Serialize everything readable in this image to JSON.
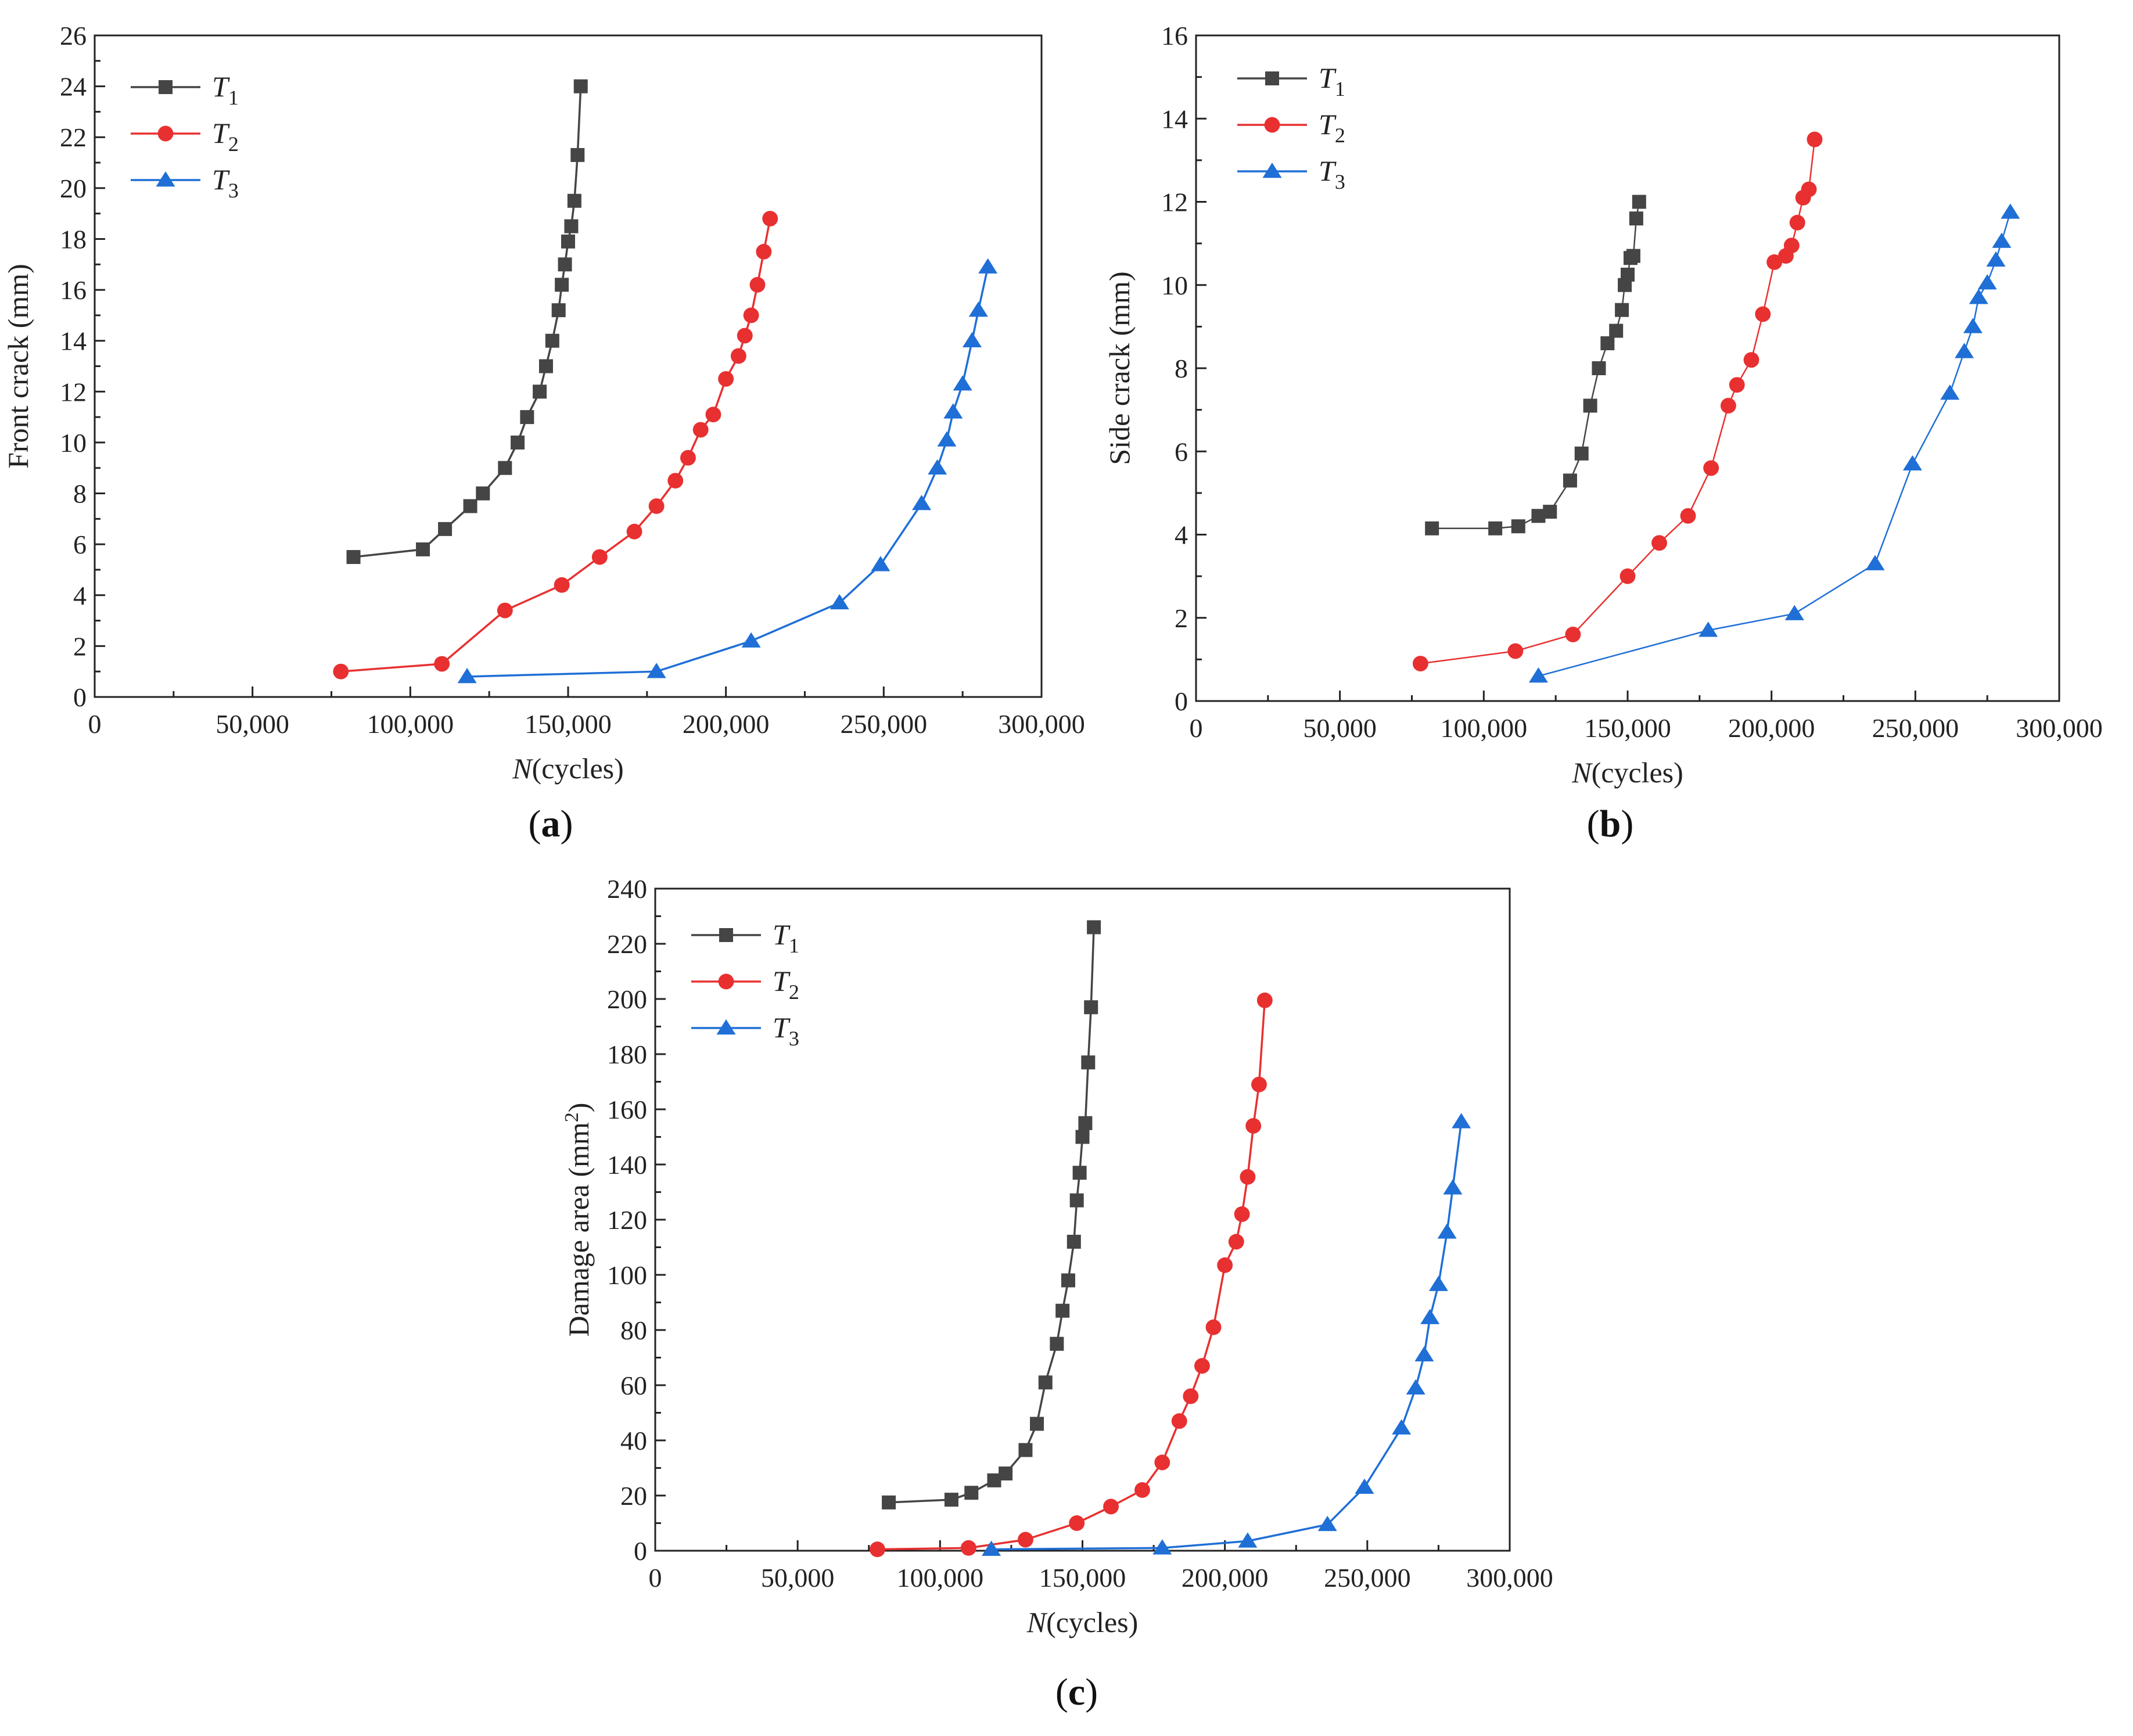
{
  "chart_data": [
    {
      "type": "line",
      "panel_label": "(a)",
      "xlabel_italic": "N",
      "xlabel_rest": "(cycles)",
      "ylabel": "Front crack (mm)",
      "xlim": [
        0,
        300000
      ],
      "ylim": [
        0,
        26
      ],
      "xticks": [
        0,
        50000,
        100000,
        150000,
        200000,
        250000,
        300000
      ],
      "xtick_labels": [
        "0",
        "50,000",
        "100,000",
        "150,000",
        "200,000",
        "250,000",
        "300,000"
      ],
      "yticks": [
        0,
        2,
        4,
        6,
        8,
        10,
        12,
        14,
        16,
        18,
        20,
        22,
        24,
        26
      ],
      "ytick_labels": [
        "0",
        "2",
        "4",
        "6",
        "8",
        "10",
        "12",
        "14",
        "16",
        "18",
        "20",
        "22",
        "24",
        "26"
      ],
      "legend_position": "top-left",
      "series": [
        {
          "name": "T",
          "sub": "1",
          "color": "#454545",
          "marker": "square",
          "x": [
            82000,
            104000,
            111000,
            119000,
            123000,
            130000,
            134000,
            137000,
            141000,
            143000,
            145000,
            147000,
            148000,
            149000,
            150000,
            151000,
            152000,
            153000,
            154000
          ],
          "y": [
            5.5,
            5.8,
            6.6,
            7.5,
            8.0,
            9.0,
            10.0,
            11.0,
            12.0,
            13.0,
            14.0,
            15.2,
            16.2,
            17.0,
            17.9,
            18.5,
            19.5,
            21.3,
            24.0
          ]
        },
        {
          "name": "T",
          "sub": "2",
          "color": "#e83030",
          "marker": "circle",
          "x": [
            78000,
            110000,
            130000,
            148000,
            160000,
            171000,
            178000,
            184000,
            188000,
            192000,
            196000,
            200000,
            204000,
            206000,
            208000,
            210000,
            212000,
            214000
          ],
          "y": [
            1.0,
            1.3,
            3.4,
            4.4,
            5.5,
            6.5,
            7.5,
            8.5,
            9.4,
            10.5,
            11.1,
            12.5,
            13.4,
            14.2,
            15.0,
            16.2,
            17.5,
            18.8
          ]
        },
        {
          "name": "T",
          "sub": "3",
          "color": "#1f6fd6",
          "marker": "triangle",
          "x": [
            118000,
            178000,
            208000,
            236000,
            249000,
            262000,
            267000,
            270000,
            272000,
            275000,
            278000,
            280000,
            283000
          ],
          "y": [
            0.8,
            1.0,
            2.2,
            3.7,
            5.2,
            7.6,
            9.0,
            10.1,
            11.2,
            12.3,
            14.0,
            15.2,
            16.9
          ]
        }
      ]
    },
    {
      "type": "line",
      "panel_label": "(b)",
      "xlabel_italic": "N",
      "xlabel_rest": "(cycles)",
      "ylabel": "Side crack (mm)",
      "xlim": [
        0,
        300000
      ],
      "ylim": [
        0,
        16
      ],
      "xticks": [
        0,
        50000,
        100000,
        150000,
        200000,
        250000,
        300000
      ],
      "xtick_labels": [
        "0",
        "50,000",
        "100,000",
        "150,000",
        "200,000",
        "250,000",
        "300,000"
      ],
      "yticks": [
        0,
        2,
        4,
        6,
        8,
        10,
        12,
        14,
        16
      ],
      "ytick_labels": [
        "0",
        "2",
        "4",
        "6",
        "8",
        "10",
        "12",
        "14",
        "16"
      ],
      "legend_position": "top-left",
      "series": [
        {
          "name": "T",
          "sub": "1",
          "color": "#454545",
          "marker": "square",
          "x": [
            82000,
            104000,
            112000,
            119000,
            123000,
            130000,
            134000,
            137000,
            140000,
            143000,
            146000,
            148000,
            149000,
            150000,
            151000,
            152000,
            153000,
            154000
          ],
          "y": [
            4.15,
            4.15,
            4.2,
            4.45,
            4.55,
            5.3,
            5.95,
            7.1,
            8.0,
            8.6,
            8.9,
            9.4,
            10.0,
            10.25,
            10.65,
            10.7,
            11.6,
            12.0
          ]
        },
        {
          "name": "T",
          "sub": "2",
          "color": "#e83030",
          "marker": "circle",
          "x": [
            78000,
            111000,
            131000,
            150000,
            161000,
            171000,
            179000,
            185000,
            188000,
            193000,
            197000,
            201000,
            205000,
            207000,
            209000,
            211000,
            213000,
            215000
          ],
          "y": [
            0.9,
            1.2,
            1.6,
            3.0,
            3.8,
            4.45,
            5.6,
            7.1,
            7.6,
            8.2,
            9.3,
            10.55,
            10.7,
            10.95,
            11.5,
            12.1,
            12.3,
            13.5
          ]
        },
        {
          "name": "T",
          "sub": "3",
          "color": "#1f6fd6",
          "marker": "triangle",
          "x": [
            119000,
            178000,
            208000,
            236000,
            249000,
            262000,
            267000,
            270000,
            272000,
            275000,
            278000,
            280000,
            283000
          ],
          "y": [
            0.6,
            1.7,
            2.1,
            3.3,
            5.7,
            7.4,
            8.4,
            9.0,
            9.7,
            10.05,
            10.6,
            11.05,
            11.75
          ]
        }
      ]
    },
    {
      "type": "line",
      "panel_label": "(c)",
      "xlabel_italic": "N",
      "xlabel_rest": "(cycles)",
      "ylabel": "Damage area (mm",
      "ylabel_sup": "2",
      "ylabel_end": ")",
      "xlim": [
        0,
        300000
      ],
      "ylim": [
        0,
        240
      ],
      "xticks": [
        0,
        50000,
        100000,
        150000,
        200000,
        250000,
        300000
      ],
      "xtick_labels": [
        "0",
        "50,000",
        "100,000",
        "150,000",
        "200,000",
        "250,000",
        "300,000"
      ],
      "yticks": [
        0,
        20,
        40,
        60,
        80,
        100,
        120,
        140,
        160,
        180,
        200,
        220,
        240
      ],
      "ytick_labels": [
        "0",
        "20",
        "40",
        "60",
        "80",
        "100",
        "120",
        "140",
        "160",
        "180",
        "200",
        "220",
        "240"
      ],
      "legend_position": "top-left",
      "series": [
        {
          "name": "T",
          "sub": "1",
          "color": "#454545",
          "marker": "square",
          "x": [
            82000,
            104000,
            111000,
            119000,
            123000,
            130000,
            134000,
            137000,
            141000,
            143000,
            145000,
            147000,
            148000,
            149000,
            150000,
            151000,
            152000,
            153000,
            154000
          ],
          "y": [
            17.5,
            18.5,
            21,
            25.5,
            28,
            36.5,
            46,
            61,
            75,
            87,
            98,
            112,
            127,
            137,
            150,
            155,
            177,
            197,
            226
          ]
        },
        {
          "name": "T",
          "sub": "2",
          "color": "#e83030",
          "marker": "circle",
          "x": [
            78000,
            110000,
            130000,
            148000,
            160000,
            171000,
            178000,
            184000,
            188000,
            192000,
            196000,
            200000,
            204000,
            206000,
            208000,
            210000,
            212000,
            214000
          ],
          "y": [
            0.5,
            1,
            4,
            10,
            16,
            22,
            32,
            47,
            56,
            67,
            81,
            103.5,
            112,
            122,
            135.5,
            154,
            169,
            199.5
          ]
        },
        {
          "name": "T",
          "sub": "3",
          "color": "#1f6fd6",
          "marker": "triangle",
          "x": [
            118000,
            178000,
            208000,
            236000,
            249000,
            262000,
            267000,
            270000,
            272000,
            275000,
            278000,
            280000,
            283000
          ],
          "y": [
            0.5,
            1,
            3.5,
            9.5,
            23,
            44.5,
            59,
            71,
            84.5,
            96.5,
            115.5,
            131.5,
            155.5
          ]
        }
      ]
    }
  ]
}
